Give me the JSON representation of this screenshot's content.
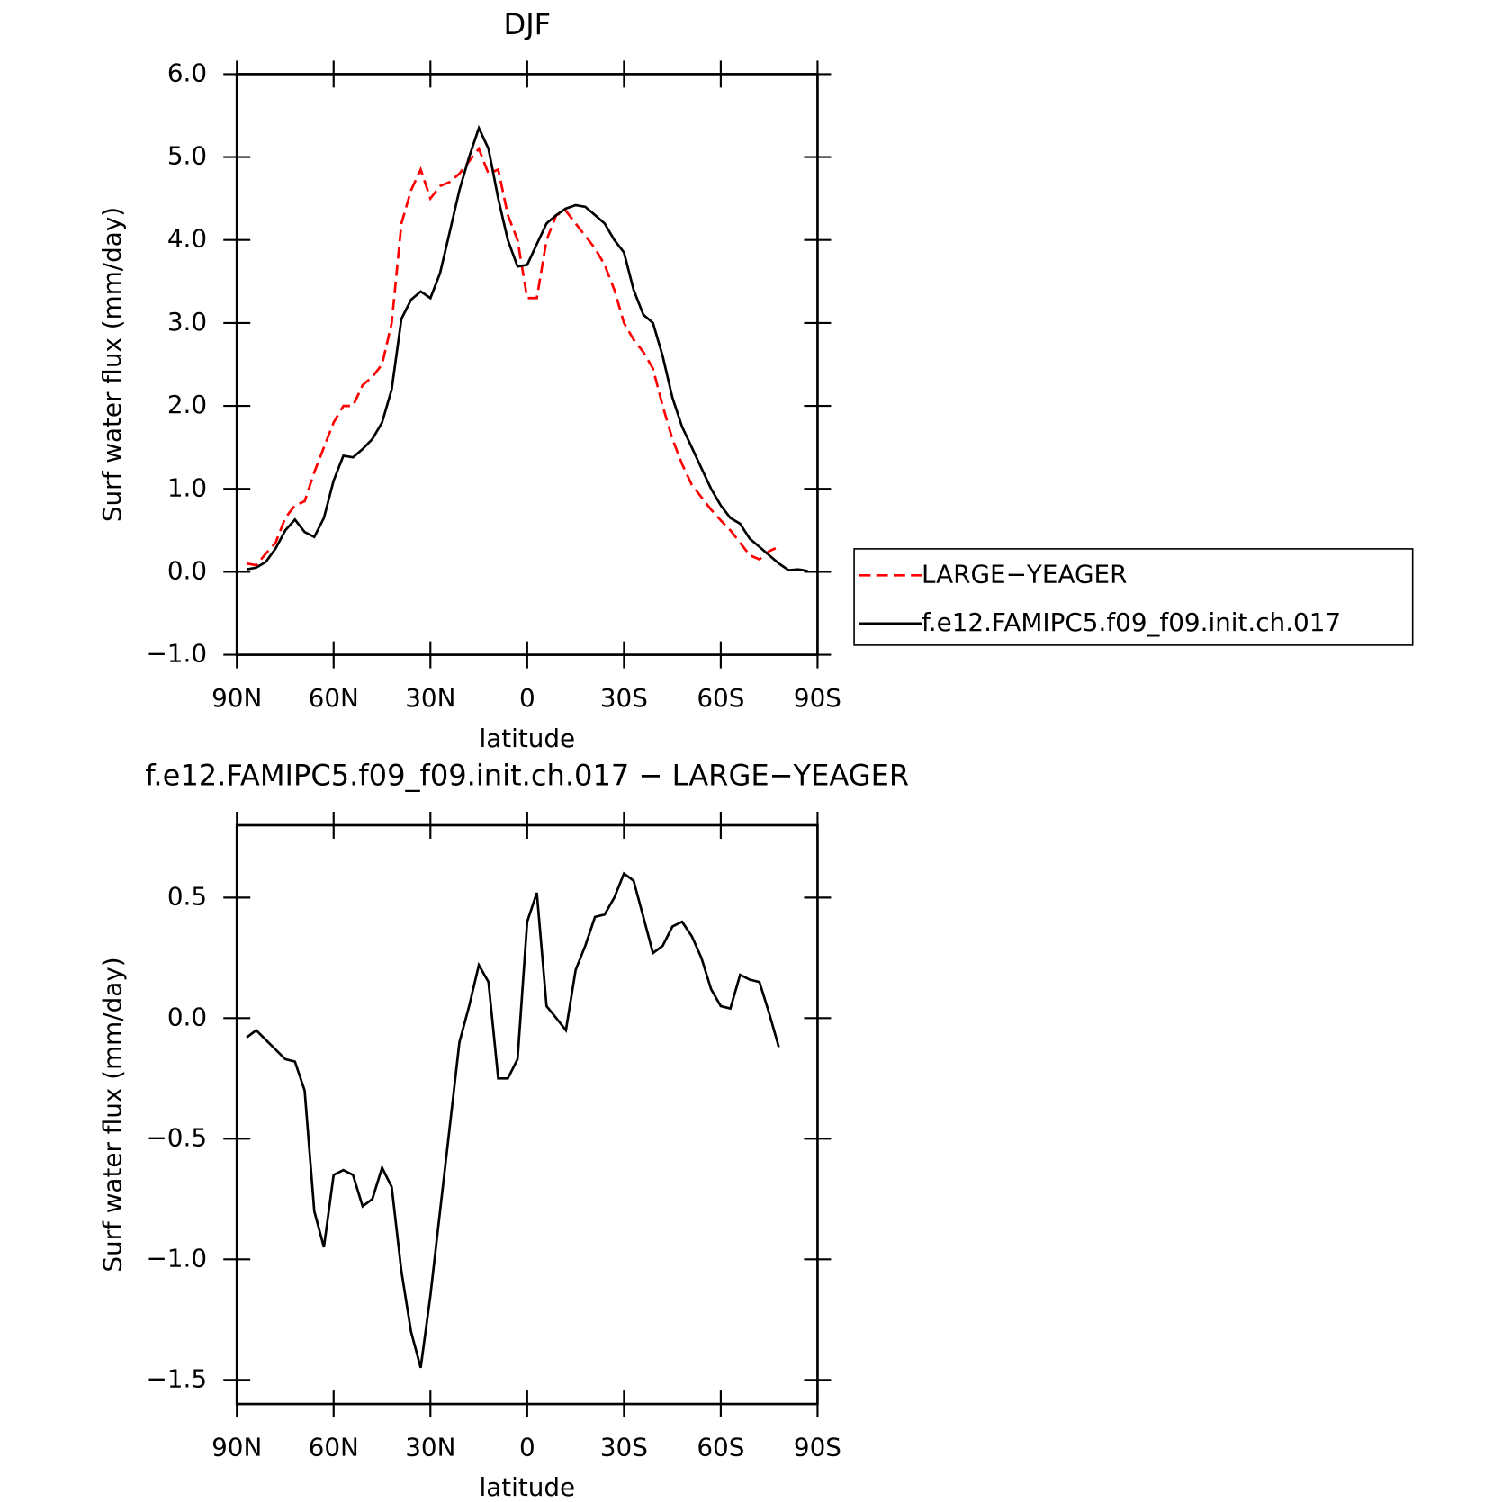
{
  "chart_data": [
    {
      "type": "line",
      "title": "DJF",
      "xlabel": "latitude",
      "ylabel": "Surf water flux (mm/day)",
      "x": [
        87,
        84,
        81,
        78,
        75,
        72,
        69,
        66,
        63,
        60,
        57,
        54,
        51,
        48,
        45,
        42,
        39,
        36,
        33,
        30,
        27,
        24,
        21,
        18,
        15,
        12,
        9,
        6,
        3,
        0,
        -3,
        -6,
        -9,
        -12,
        -15,
        -18,
        -21,
        -24,
        -27,
        -30,
        -33,
        -36,
        -39,
        -42,
        -45,
        -48,
        -51,
        -54,
        -57,
        -60,
        -63,
        -66,
        -69,
        -72,
        -75,
        -78,
        -81,
        -84,
        -87
      ],
      "series": [
        {
          "name": "LARGE−YEAGER",
          "color": "#ff0000",
          "linestyle": "dashed",
          "values": [
            0.1,
            0.08,
            0.22,
            0.35,
            0.65,
            0.8,
            0.85,
            1.2,
            1.5,
            1.8,
            2.0,
            2.0,
            2.25,
            2.35,
            2.5,
            3.0,
            4.2,
            4.6,
            4.85,
            4.5,
            4.65,
            4.7,
            4.8,
            4.95,
            5.1,
            4.8,
            4.85,
            4.3,
            4.0,
            3.3,
            3.3,
            4.0,
            4.3,
            4.35,
            4.2,
            4.05,
            3.9,
            3.7,
            3.4,
            3.0,
            2.8,
            2.65,
            2.45,
            2.0,
            1.6,
            1.3,
            1.05,
            0.9,
            0.75,
            0.62,
            0.5,
            0.35,
            0.2,
            0.15,
            0.25,
            0.3,
            null,
            null,
            null
          ]
        },
        {
          "name": "f.e12.FAMIPC5.f09_f09.init.ch.017",
          "color": "#000000",
          "linestyle": "solid",
          "values": [
            0.03,
            0.05,
            0.12,
            0.28,
            0.5,
            0.63,
            0.48,
            0.42,
            0.65,
            1.1,
            1.4,
            1.38,
            1.48,
            1.6,
            1.8,
            2.2,
            3.05,
            3.28,
            3.38,
            3.3,
            3.6,
            4.1,
            4.6,
            5.0,
            5.35,
            5.1,
            4.5,
            4.0,
            3.68,
            3.7,
            3.95,
            4.2,
            4.3,
            4.38,
            4.42,
            4.4,
            4.3,
            4.2,
            4.0,
            3.85,
            3.4,
            3.1,
            3.0,
            2.6,
            2.1,
            1.75,
            1.5,
            1.25,
            1.0,
            0.8,
            0.65,
            0.58,
            0.4,
            0.3,
            0.2,
            0.1,
            0.02,
            0.03,
            0.01
          ]
        }
      ],
      "xlim": [
        90,
        -90
      ],
      "xticks": [
        {
          "value": 90,
          "label": "90N"
        },
        {
          "value": 60,
          "label": "60N"
        },
        {
          "value": 30,
          "label": "30N"
        },
        0,
        {
          "value": -30,
          "label": "30S"
        },
        {
          "value": -60,
          "label": "60S"
        },
        {
          "value": -90,
          "label": "90S"
        }
      ],
      "ylim": [
        -1,
        6
      ],
      "yticks": [
        {
          "value": 6,
          "label": "6.0"
        },
        {
          "value": 5,
          "label": "5.0"
        },
        {
          "value": 4,
          "label": "4.0"
        },
        {
          "value": 3,
          "label": "3.0"
        },
        {
          "value": 2,
          "label": "2.0"
        },
        {
          "value": 1,
          "label": "1.0"
        },
        {
          "value": 0,
          "label": "0.0"
        },
        {
          "value": -1,
          "label": "−1.0"
        }
      ],
      "legend": "right"
    },
    {
      "type": "line",
      "title": "f.e12.FAMIPC5.f09_f09.init.ch.017 − LARGE−YEAGER",
      "xlabel": "latitude",
      "ylabel": "Surf water flux (mm/day)",
      "x": [
        87,
        84,
        81,
        78,
        75,
        72,
        69,
        66,
        63,
        60,
        57,
        54,
        51,
        48,
        45,
        42,
        39,
        36,
        33,
        30,
        27,
        24,
        21,
        18,
        15,
        12,
        9,
        6,
        3,
        0,
        -3,
        -6,
        -9,
        -12,
        -15,
        -18,
        -21,
        -24,
        -27,
        -30,
        -33,
        -36,
        -39,
        -42,
        -45,
        -48,
        -51,
        -54,
        -57,
        -60,
        -63,
        -66,
        -69,
        -72,
        -75,
        -78,
        -81,
        -84,
        -87
      ],
      "color": "#000000",
      "values": [
        -0.08,
        -0.05,
        -0.09,
        -0.13,
        -0.17,
        -0.18,
        -0.3,
        -0.8,
        -0.95,
        -0.65,
        -0.63,
        -0.65,
        -0.78,
        -0.75,
        -0.62,
        -0.7,
        -1.05,
        -1.3,
        -1.45,
        -1.15,
        -0.8,
        -0.45,
        -0.1,
        0.05,
        0.22,
        0.15,
        -0.25,
        -0.25,
        -0.17,
        0.4,
        0.52,
        0.05,
        0.0,
        -0.05,
        0.2,
        0.3,
        0.42,
        0.43,
        0.5,
        0.6,
        0.57,
        0.42,
        0.27,
        0.3,
        0.38,
        0.4,
        0.34,
        0.25,
        0.12,
        0.05,
        0.04,
        0.18,
        0.16,
        0.15,
        0.02,
        -0.12,
        null,
        null,
        null
      ],
      "xlim": [
        90,
        -90
      ],
      "xticks": [
        {
          "value": 90,
          "label": "90N"
        },
        {
          "value": 60,
          "label": "60N"
        },
        {
          "value": 30,
          "label": "30N"
        },
        0,
        {
          "value": -30,
          "label": "30S"
        },
        {
          "value": -60,
          "label": "60S"
        },
        {
          "value": -90,
          "label": "90S"
        }
      ],
      "ylim": [
        -1.6,
        0.8
      ],
      "yticks": [
        {
          "value": 0.5,
          "label": "0.5"
        },
        {
          "value": 0,
          "label": "0.0"
        },
        {
          "value": -0.5,
          "label": "−0.5"
        },
        {
          "value": -1,
          "label": "−1.0"
        },
        {
          "value": -1.5,
          "label": "−1.5"
        }
      ]
    }
  ]
}
